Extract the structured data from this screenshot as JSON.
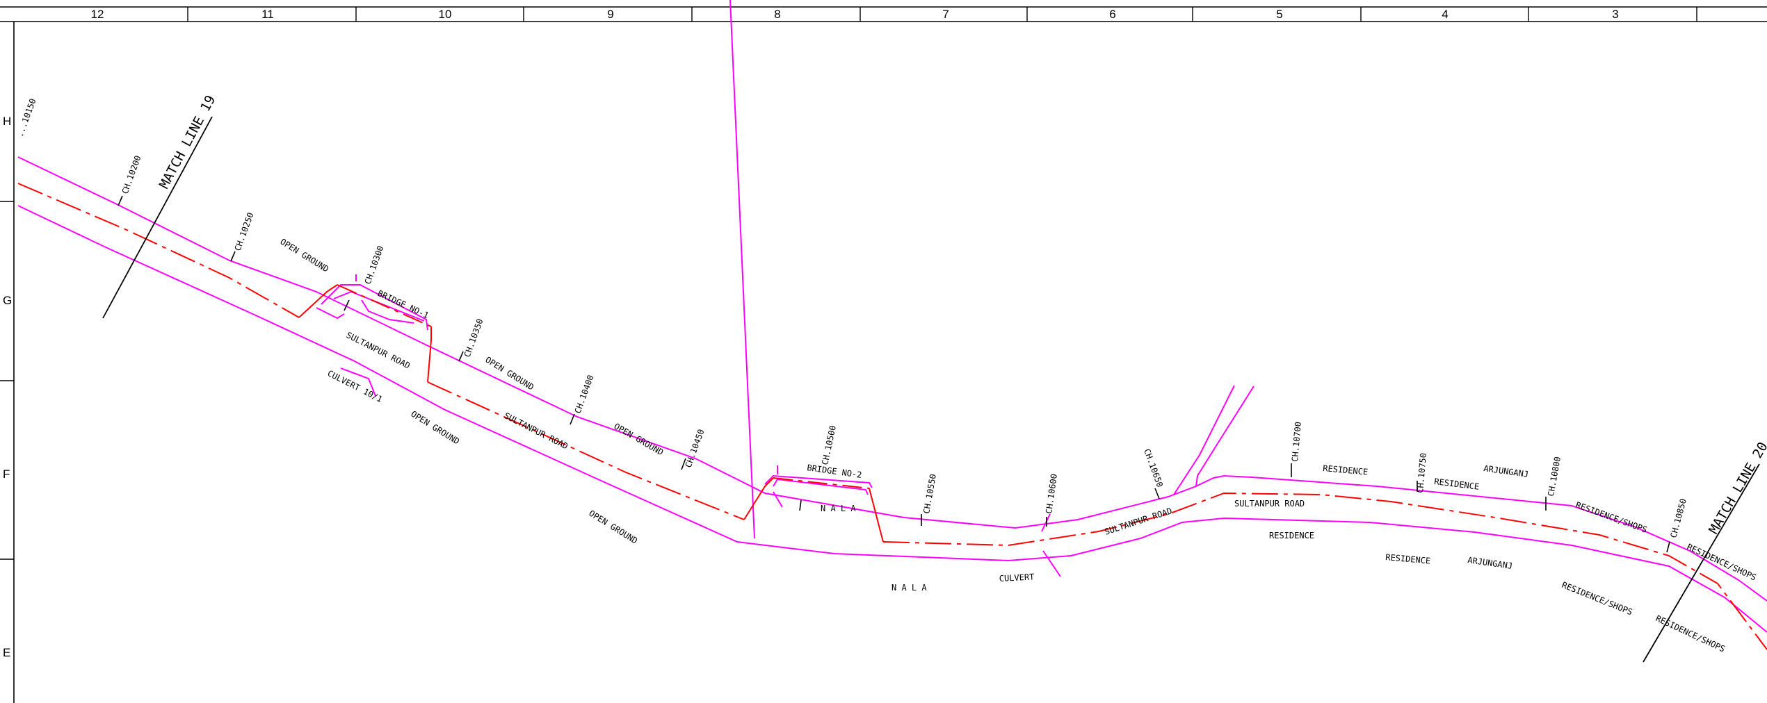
{
  "column_labels": [
    "12",
    "11",
    "10",
    "9",
    "8",
    "7",
    "6",
    "5",
    "4",
    "3"
  ],
  "row_labels": [
    "H",
    "G",
    "F",
    "E"
  ],
  "match_lines": {
    "left": "MATCH LINE 19",
    "right": "MATCH LINE 20"
  },
  "chainages": {
    "c10150": "...10150",
    "c10200": "CH.10200",
    "c10250": "CH.10250",
    "c10300": "CH.10300",
    "c10350": "CH.10350",
    "c10400": "CH.10400",
    "c10450": "CH.10450",
    "c10500": "CH.10500",
    "c10550": "CH.10550",
    "c10600": "CH.10600",
    "c10650": "CH.10650",
    "c10700": "CH.10700",
    "c10750": "CH.10750",
    "c10800": "CH.10800",
    "c10850": "CH.10850"
  },
  "labels": {
    "open_ground_1": "OPEN GROUND",
    "bridge_1": "BRIDGE NO-1",
    "sultanpur_1": "SULTANPUR ROAD",
    "culvert_101": "CULVERT 10/1",
    "open_ground_2": "OPEN GROUND",
    "open_ground_3": "OPEN GROUND",
    "sultanpur_2": "SULTANPUR ROAD",
    "open_ground_4": "OPEN GROUND",
    "open_ground_5": "OPEN GROUND",
    "bridge_2": "BRIDGE NO-2",
    "nala_1": "N A L A",
    "nala_2": "N A L A",
    "culvert": "CULVERT",
    "sultanpur_3": "SULTANPUR ROAD",
    "sultanpur_4": "SULTANPUR ROAD",
    "residence_1": "RESIDENCE",
    "residence_2": "RESIDENCE",
    "residence_3": "RESIDENCE",
    "residence_4": "RESIDENCE",
    "arjunganj_1": "ARJUNGANJ",
    "arjunganj_2": "ARJUNGANJ",
    "res_shops_1": "RESIDENCE/SHOPS",
    "res_shops_2": "RESIDENCE/SHOPS",
    "res_shops_3": "RESIDENCE/SHOPS",
    "res_shops_4": "RESIDENCE/SHOPS"
  },
  "colors": {
    "road_edge": "#ff00ff",
    "centerline": "#ff0000",
    "ink": "#000000"
  }
}
